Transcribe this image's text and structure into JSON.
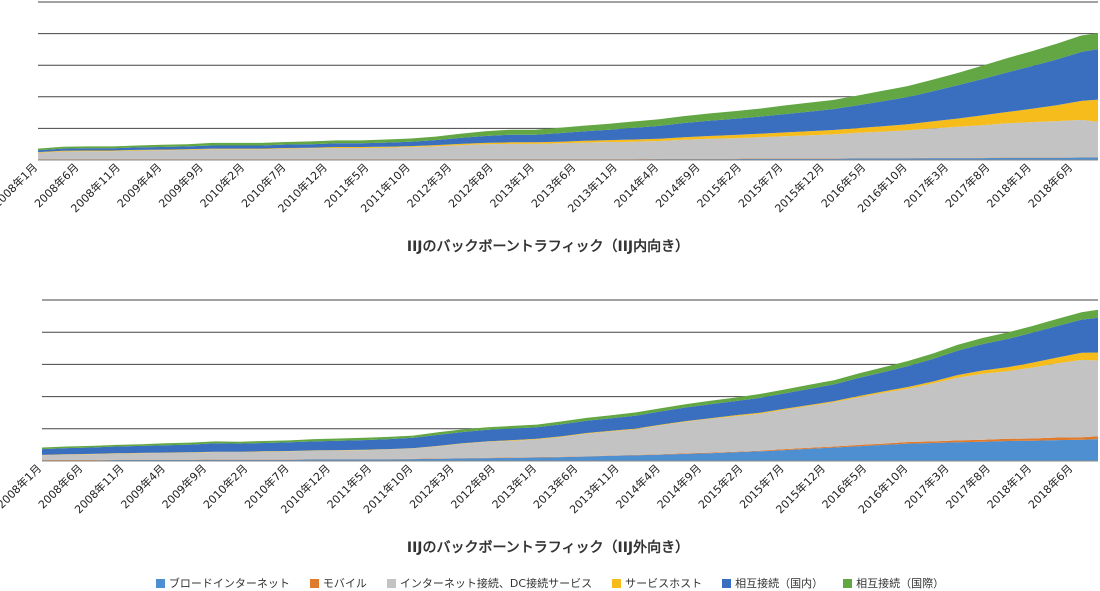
{
  "chart_data": [
    {
      "type": "area",
      "stacked": true,
      "title": "IIJのバックボーントラフィック（IIJ内向き）",
      "x_tick_labels": [
        "2008年1月",
        "2008年6月",
        "2008年11月",
        "2009年4月",
        "2009年9月",
        "2010年2月",
        "2010年7月",
        "2010年12月",
        "2011年5月",
        "2011年10月",
        "2012年3月",
        "2012年8月",
        "2013年1月",
        "2013年6月",
        "2013年11月",
        "2014年4月",
        "2014年9月",
        "2015年2月",
        "2015年7月",
        "2015年12月",
        "2016年5月",
        "2016年10月",
        "2017年3月",
        "2017年8月",
        "2018年1月",
        "2018年6月"
      ],
      "x": [
        "2008-01",
        "2008-04",
        "2008-07",
        "2008-10",
        "2009-01",
        "2009-04",
        "2009-07",
        "2009-10",
        "2010-01",
        "2010-04",
        "2010-07",
        "2010-10",
        "2011-01",
        "2011-04",
        "2011-07",
        "2011-10",
        "2012-01",
        "2012-04",
        "2012-07",
        "2012-10",
        "2013-01",
        "2013-04",
        "2013-07",
        "2013-10",
        "2014-01",
        "2014-04",
        "2014-07",
        "2014-10",
        "2015-01",
        "2015-04",
        "2015-07",
        "2015-10",
        "2016-01",
        "2016-04",
        "2016-07",
        "2016-10",
        "2017-01",
        "2017-04",
        "2017-07",
        "2017-10",
        "2018-01",
        "2018-04",
        "2018-07",
        "2018-09"
      ],
      "ylim": [
        0,
        5
      ],
      "gridlines": 5,
      "series": [
        {
          "name": "ブロードインターネット",
          "color": "#4d8fd0",
          "values": [
            0.02,
            0.02,
            0.02,
            0.02,
            0.02,
            0.02,
            0.02,
            0.02,
            0.02,
            0.02,
            0.02,
            0.02,
            0.02,
            0.02,
            0.02,
            0.02,
            0.02,
            0.02,
            0.02,
            0.02,
            0.02,
            0.02,
            0.02,
            0.02,
            0.02,
            0.03,
            0.03,
            0.03,
            0.03,
            0.04,
            0.04,
            0.04,
            0.04,
            0.05,
            0.05,
            0.05,
            0.06,
            0.06,
            0.06,
            0.07,
            0.07,
            0.07,
            0.08,
            0.08
          ]
        },
        {
          "name": "モバイル",
          "color": "#e07b2e",
          "values": [
            0.01,
            0.01,
            0.01,
            0.01,
            0.01,
            0.01,
            0.01,
            0.01,
            0.01,
            0.01,
            0.01,
            0.01,
            0.01,
            0.01,
            0.01,
            0.01,
            0.01,
            0.01,
            0.01,
            0.01,
            0.01,
            0.01,
            0.01,
            0.01,
            0.01,
            0.01,
            0.01,
            0.01,
            0.01,
            0.01,
            0.01,
            0.01,
            0.01,
            0.01,
            0.01,
            0.01,
            0.01,
            0.01,
            0.01,
            0.01,
            0.01,
            0.01,
            0.01,
            0.01
          ]
        },
        {
          "name": "インターネット接続、DC接続サービス",
          "color": "#c3c3c3",
          "values": [
            0.2,
            0.24,
            0.25,
            0.25,
            0.27,
            0.28,
            0.29,
            0.31,
            0.31,
            0.31,
            0.33,
            0.34,
            0.35,
            0.35,
            0.36,
            0.38,
            0.4,
            0.44,
            0.47,
            0.48,
            0.48,
            0.5,
            0.52,
            0.54,
            0.55,
            0.56,
            0.6,
            0.63,
            0.65,
            0.67,
            0.7,
            0.73,
            0.76,
            0.8,
            0.84,
            0.88,
            0.93,
            0.98,
            1.03,
            1.08,
            1.12,
            1.15,
            1.18,
            1.12
          ]
        },
        {
          "name": "サービスホスト",
          "color": "#f5bc1c",
          "values": [
            0.02,
            0.02,
            0.02,
            0.02,
            0.02,
            0.02,
            0.02,
            0.02,
            0.02,
            0.02,
            0.02,
            0.02,
            0.03,
            0.03,
            0.03,
            0.03,
            0.04,
            0.04,
            0.04,
            0.05,
            0.05,
            0.05,
            0.06,
            0.06,
            0.07,
            0.07,
            0.08,
            0.09,
            0.1,
            0.11,
            0.12,
            0.13,
            0.14,
            0.15,
            0.17,
            0.19,
            0.22,
            0.26,
            0.31,
            0.36,
            0.42,
            0.5,
            0.6,
            0.7
          ]
        },
        {
          "name": "相互接続（国内）",
          "color": "#3a6ebe",
          "values": [
            0.06,
            0.07,
            0.07,
            0.07,
            0.08,
            0.08,
            0.09,
            0.1,
            0.1,
            0.1,
            0.11,
            0.11,
            0.12,
            0.12,
            0.13,
            0.14,
            0.16,
            0.19,
            0.22,
            0.24,
            0.24,
            0.27,
            0.3,
            0.33,
            0.37,
            0.41,
            0.45,
            0.48,
            0.51,
            0.54,
            0.58,
            0.62,
            0.66,
            0.72,
            0.79,
            0.86,
            0.95,
            1.05,
            1.15,
            1.25,
            1.35,
            1.45,
            1.55,
            1.6
          ]
        },
        {
          "name": "相互接続（国際）",
          "color": "#62a744",
          "values": [
            0.05,
            0.06,
            0.06,
            0.06,
            0.06,
            0.07,
            0.07,
            0.08,
            0.08,
            0.08,
            0.08,
            0.09,
            0.09,
            0.09,
            0.1,
            0.1,
            0.11,
            0.13,
            0.15,
            0.16,
            0.16,
            0.17,
            0.18,
            0.19,
            0.2,
            0.21,
            0.22,
            0.23,
            0.24,
            0.25,
            0.27,
            0.28,
            0.29,
            0.31,
            0.33,
            0.35,
            0.37,
            0.39,
            0.42,
            0.45,
            0.47,
            0.5,
            0.52,
            0.5
          ]
        }
      ]
    },
    {
      "type": "area",
      "stacked": true,
      "title": "IIJのバックボーントラフィック（IIJ外向き）",
      "x_tick_labels": [
        "2008年1月",
        "2008年6月",
        "2008年11月",
        "2009年4月",
        "2009年9月",
        "2010年2月",
        "2010年7月",
        "2010年12月",
        "2011年5月",
        "2011年10月",
        "2012年3月",
        "2012年8月",
        "2013年1月",
        "2013年6月",
        "2013年11月",
        "2014年4月",
        "2014年9月",
        "2015年2月",
        "2015年7月",
        "2015年12月",
        "2016年5月",
        "2016年10月",
        "2017年3月",
        "2017年8月",
        "2018年1月",
        "2018年6月"
      ],
      "x": [
        "2008-01",
        "2008-04",
        "2008-07",
        "2008-10",
        "2009-01",
        "2009-04",
        "2009-07",
        "2009-10",
        "2010-01",
        "2010-04",
        "2010-07",
        "2010-10",
        "2011-01",
        "2011-04",
        "2011-07",
        "2011-10",
        "2012-01",
        "2012-04",
        "2012-07",
        "2012-10",
        "2013-01",
        "2013-04",
        "2013-07",
        "2013-10",
        "2014-01",
        "2014-04",
        "2014-07",
        "2014-10",
        "2015-01",
        "2015-04",
        "2015-07",
        "2015-10",
        "2016-01",
        "2016-04",
        "2016-07",
        "2016-10",
        "2017-01",
        "2017-04",
        "2017-07",
        "2017-10",
        "2018-01",
        "2018-04",
        "2018-07",
        "2018-09"
      ],
      "ylim": [
        0,
        5
      ],
      "gridlines": 5,
      "series": [
        {
          "name": "ブロードインターネット",
          "color": "#4d8fd0",
          "values": [
            0.02,
            0.02,
            0.02,
            0.03,
            0.03,
            0.03,
            0.03,
            0.04,
            0.04,
            0.04,
            0.04,
            0.05,
            0.05,
            0.05,
            0.05,
            0.06,
            0.07,
            0.08,
            0.09,
            0.1,
            0.11,
            0.12,
            0.14,
            0.16,
            0.18,
            0.2,
            0.22,
            0.24,
            0.27,
            0.3,
            0.34,
            0.38,
            0.42,
            0.46,
            0.5,
            0.54,
            0.56,
            0.58,
            0.6,
            0.62,
            0.63,
            0.65,
            0.66,
            0.68
          ]
        },
        {
          "name": "モバイル",
          "color": "#e07b2e",
          "values": [
            0.01,
            0.01,
            0.01,
            0.01,
            0.01,
            0.01,
            0.01,
            0.01,
            0.01,
            0.01,
            0.01,
            0.01,
            0.01,
            0.01,
            0.01,
            0.01,
            0.01,
            0.01,
            0.01,
            0.01,
            0.01,
            0.01,
            0.01,
            0.01,
            0.01,
            0.01,
            0.02,
            0.02,
            0.02,
            0.02,
            0.03,
            0.03,
            0.03,
            0.04,
            0.04,
            0.05,
            0.05,
            0.06,
            0.06,
            0.07,
            0.07,
            0.08,
            0.08,
            0.09
          ]
        },
        {
          "name": "インターネット接続、DC接続サービス",
          "color": "#c3c3c3",
          "values": [
            0.15,
            0.17,
            0.18,
            0.19,
            0.2,
            0.21,
            0.22,
            0.23,
            0.23,
            0.24,
            0.25,
            0.26,
            0.27,
            0.28,
            0.3,
            0.32,
            0.38,
            0.45,
            0.5,
            0.52,
            0.55,
            0.62,
            0.7,
            0.75,
            0.8,
            0.9,
            0.98,
            1.05,
            1.1,
            1.15,
            1.22,
            1.3,
            1.38,
            1.48,
            1.58,
            1.66,
            1.8,
            1.95,
            2.05,
            2.1,
            2.2,
            2.3,
            2.4,
            2.35
          ]
        },
        {
          "name": "サービスホスト",
          "color": "#f5bc1c",
          "values": [
            0.01,
            0.01,
            0.01,
            0.01,
            0.01,
            0.01,
            0.01,
            0.01,
            0.01,
            0.01,
            0.01,
            0.01,
            0.01,
            0.01,
            0.01,
            0.01,
            0.01,
            0.01,
            0.01,
            0.02,
            0.02,
            0.02,
            0.02,
            0.02,
            0.02,
            0.02,
            0.02,
            0.02,
            0.03,
            0.03,
            0.03,
            0.03,
            0.03,
            0.04,
            0.04,
            0.05,
            0.06,
            0.08,
            0.1,
            0.12,
            0.15,
            0.18,
            0.22,
            0.25
          ]
        },
        {
          "name": "相互接続（国内）",
          "color": "#3a6ebe",
          "values": [
            0.18,
            0.19,
            0.2,
            0.21,
            0.22,
            0.23,
            0.24,
            0.26,
            0.25,
            0.26,
            0.27,
            0.28,
            0.29,
            0.3,
            0.31,
            0.32,
            0.34,
            0.35,
            0.36,
            0.36,
            0.36,
            0.37,
            0.38,
            0.39,
            0.4,
            0.41,
            0.42,
            0.43,
            0.44,
            0.46,
            0.48,
            0.5,
            0.52,
            0.56,
            0.6,
            0.65,
            0.7,
            0.76,
            0.82,
            0.88,
            0.93,
            0.98,
            1.03,
            1.08
          ]
        },
        {
          "name": "相互接続（国際）",
          "color": "#62a744",
          "values": [
            0.05,
            0.05,
            0.05,
            0.05,
            0.05,
            0.06,
            0.06,
            0.06,
            0.06,
            0.06,
            0.06,
            0.07,
            0.07,
            0.07,
            0.07,
            0.07,
            0.08,
            0.08,
            0.08,
            0.08,
            0.08,
            0.09,
            0.09,
            0.09,
            0.1,
            0.1,
            0.1,
            0.11,
            0.11,
            0.12,
            0.12,
            0.13,
            0.13,
            0.14,
            0.15,
            0.16,
            0.17,
            0.18,
            0.19,
            0.2,
            0.21,
            0.22,
            0.23,
            0.25
          ]
        }
      ]
    }
  ],
  "legend": [
    {
      "label": "ブロードインターネット",
      "color": "#4d8fd0"
    },
    {
      "label": "モバイル",
      "color": "#e07b2e"
    },
    {
      "label": "インターネット接続、DC接続サービス",
      "color": "#c3c3c3"
    },
    {
      "label": "サービスホスト",
      "color": "#f5bc1c"
    },
    {
      "label": "相互接続（国内）",
      "color": "#3a6ebe"
    },
    {
      "label": "相互接続（国際）",
      "color": "#62a744"
    }
  ]
}
